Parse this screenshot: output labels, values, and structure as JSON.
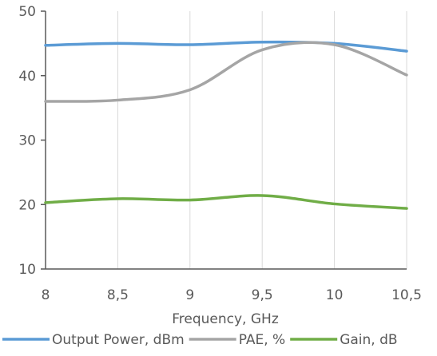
{
  "chart_data": {
    "type": "line",
    "title": "",
    "xlabel": "Frequency, GHz",
    "ylabel": "",
    "xlim": [
      8,
      10.5
    ],
    "ylim": [
      10,
      50
    ],
    "x_ticks": [
      "8",
      "8,5",
      "9",
      "9,5",
      "10",
      "10,5"
    ],
    "x_tick_values": [
      8,
      8.5,
      9,
      9.5,
      10,
      10.5
    ],
    "y_ticks": [
      "10",
      "20",
      "30",
      "40",
      "50"
    ],
    "y_tick_values": [
      10,
      20,
      30,
      40,
      50
    ],
    "grid": "vertical",
    "legend_position": "bottom",
    "x": [
      8,
      8.5,
      9,
      9.5,
      10,
      10.5
    ],
    "series": [
      {
        "name": "Output Power, dBm",
        "color": "#5b9bd5",
        "values": [
          44.7,
          45.0,
          44.8,
          45.2,
          45.0,
          43.8
        ]
      },
      {
        "name": "PAE, %",
        "color": "#a5a5a5",
        "values": [
          36.0,
          36.2,
          37.8,
          44.0,
          44.8,
          40.1
        ]
      },
      {
        "name": "Gain, dB",
        "color": "#70ad47",
        "values": [
          20.3,
          20.9,
          20.7,
          21.4,
          20.1,
          19.4
        ]
      }
    ]
  }
}
